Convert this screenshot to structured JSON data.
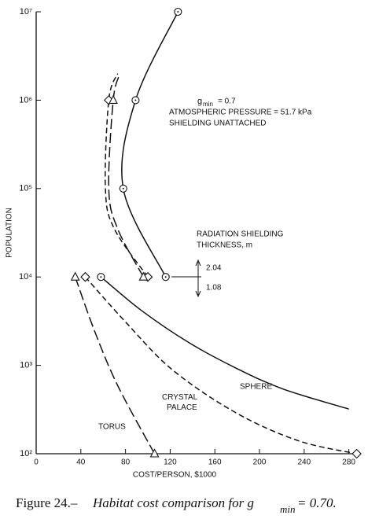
{
  "chart_data": {
    "type": "line",
    "x_label": "COST/PERSON, $1000",
    "y_label": "POPULATION",
    "xlim": [
      0,
      288
    ],
    "xticks": [
      0,
      40,
      80,
      120,
      160,
      200,
      240,
      280
    ],
    "ylim": [
      100,
      10000000
    ],
    "log_y": true,
    "yticks": [
      {
        "value": 100,
        "label": "10²"
      },
      {
        "value": 1000,
        "label": "10³"
      },
      {
        "value": 10000,
        "label": "10⁴"
      },
      {
        "value": 100000,
        "label": "10⁵"
      },
      {
        "value": 1000000,
        "label": "10⁶"
      },
      {
        "value": 10000000,
        "label": "10⁷"
      }
    ],
    "color": "#111111",
    "series": [
      {
        "marker": "circle",
        "dash": "solid",
        "marked_points": [
          0,
          1,
          2,
          3
        ],
        "x": [
          116,
          78,
          89,
          127
        ],
        "values": [
          10000,
          100000,
          1000000,
          10000000
        ]
      },
      {
        "marker": "diamond",
        "dash": "short",
        "marked_points": [
          0,
          3
        ],
        "x": [
          100,
          70,
          62,
          65,
          73
        ],
        "values": [
          10000,
          35000,
          100000,
          1000000,
          2000000
        ]
      },
      {
        "marker": "triangle",
        "dash": "long",
        "marked_points": [
          0,
          3
        ],
        "x": [
          96,
          73,
          65,
          69,
          75
        ],
        "values": [
          10000,
          35000,
          100000,
          1000000,
          2000000
        ]
      },
      {
        "name": "SPHERE",
        "marker": "circle",
        "dash": "solid",
        "marked_points": [
          0
        ],
        "x": [
          58,
          94,
          137,
          179,
          221,
          280
        ],
        "values": [
          10000,
          4200,
          1800,
          930,
          540,
          320
        ]
      },
      {
        "name": "CRYSTAL PALACE",
        "marker": "diamond",
        "dash": "short",
        "marked_points": [
          0,
          5
        ],
        "x": [
          44,
          80,
          122,
          179,
          235,
          287
        ],
        "values": [
          10000,
          3100,
          890,
          290,
          140,
          100
        ]
      },
      {
        "name": "TORUS",
        "marker": "triangle",
        "dash": "long",
        "marked_points": [
          0,
          3
        ],
        "x": [
          35,
          52,
          73,
          106
        ],
        "values": [
          10000,
          2500,
          590,
          100
        ]
      }
    ],
    "annotations": {
      "g_symbol": "g",
      "g_sub": "min",
      "g_value": "=   0.7",
      "pressure": "ATMOSPHERIC PRESSURE  =  51.7 kPa",
      "shielding": "SHIELDING UNATTACHED",
      "thickness_1": "RADIATION SHIELDING",
      "thickness_2": "THICKNESS, m",
      "upper": "2.04",
      "lower": "1.08"
    }
  },
  "caption": {
    "lead": "Figure 24.– ",
    "text": "Habitat cost comparison for g",
    "sub": "min",
    "tail": " = 0.70."
  }
}
